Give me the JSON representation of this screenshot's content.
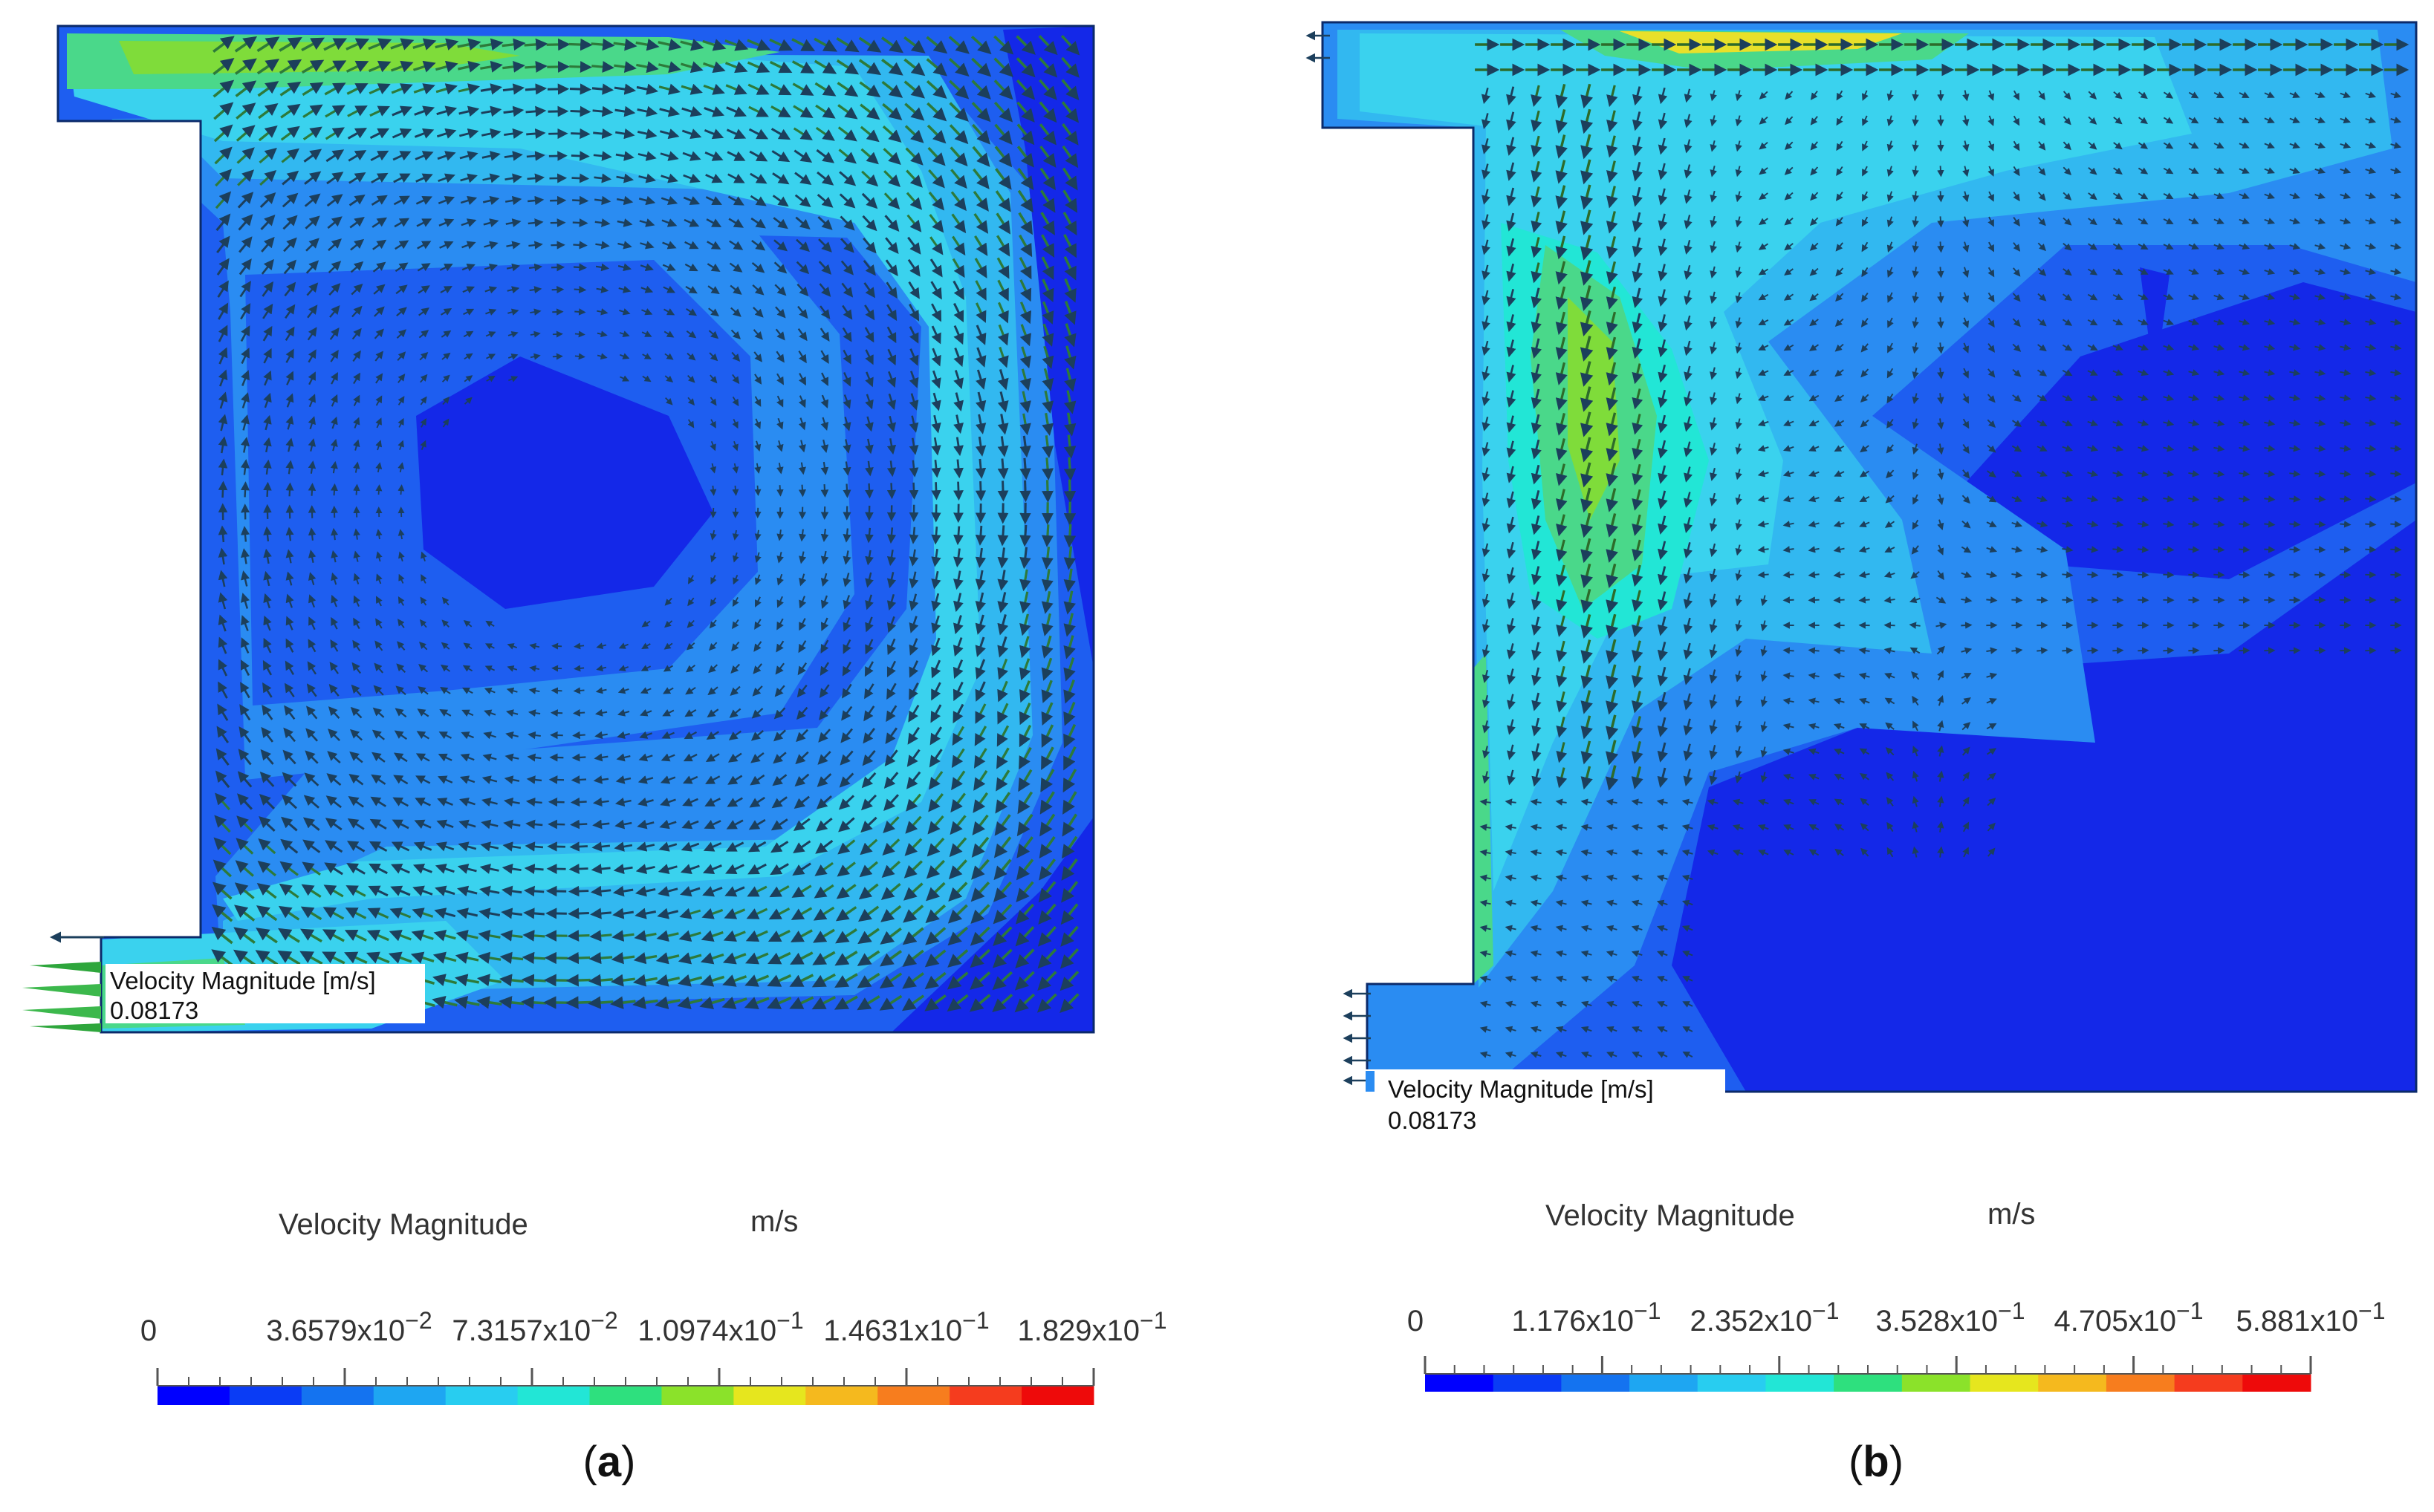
{
  "panels": [
    {
      "id": "a",
      "caption_open": "(",
      "caption_letter": "a",
      "caption_close": ")",
      "probe_label": "Velocity Magnitude [m/s]",
      "probe_value": "0.08173",
      "legend_title": "Velocity Magnitude",
      "legend_unit": "m/s",
      "legend_ticks": [
        {
          "mant": "0",
          "exp": ""
        },
        {
          "mant": "3.6579x10",
          "exp": "−2"
        },
        {
          "mant": "7.3157x10",
          "exp": "−2"
        },
        {
          "mant": "1.0974x10",
          "exp": "−1"
        },
        {
          "mant": "1.4631x10",
          "exp": "−1"
        },
        {
          "mant": "1.829x10",
          "exp": "−1"
        }
      ]
    },
    {
      "id": "b",
      "caption_open": "(",
      "caption_letter": "b",
      "caption_close": ")",
      "probe_label": "Velocity Magnitude [m/s]",
      "probe_value": "0.08173",
      "legend_title": "Velocity Magnitude",
      "legend_unit": "m/s",
      "legend_ticks": [
        {
          "mant": "0",
          "exp": ""
        },
        {
          "mant": "1.176x10",
          "exp": "−1"
        },
        {
          "mant": "2.352x10",
          "exp": "−1"
        },
        {
          "mant": "3.528x10",
          "exp": "−1"
        },
        {
          "mant": "4.705x10",
          "exp": "−1"
        },
        {
          "mant": "5.881x10",
          "exp": "−1"
        }
      ]
    }
  ],
  "colormap": [
    "#0000ff",
    "#0a3cf5",
    "#1473f0",
    "#1ea6f2",
    "#28cdf0",
    "#22e6d6",
    "#2ee07e",
    "#8be22a",
    "#e6e61e",
    "#f5b91e",
    "#f77d1e",
    "#f53c1e",
    "#ee0a0a"
  ],
  "colors": {
    "deep_blue": "#1428e8",
    "blue": "#1e5ef0",
    "mid_blue": "#2a8cf2",
    "cyan": "#32b8f0",
    "light_cyan": "#3ad2ee",
    "green": "#4ad88a",
    "hot_green": "#7fdc3a",
    "yellow": "#e8e02a"
  }
}
